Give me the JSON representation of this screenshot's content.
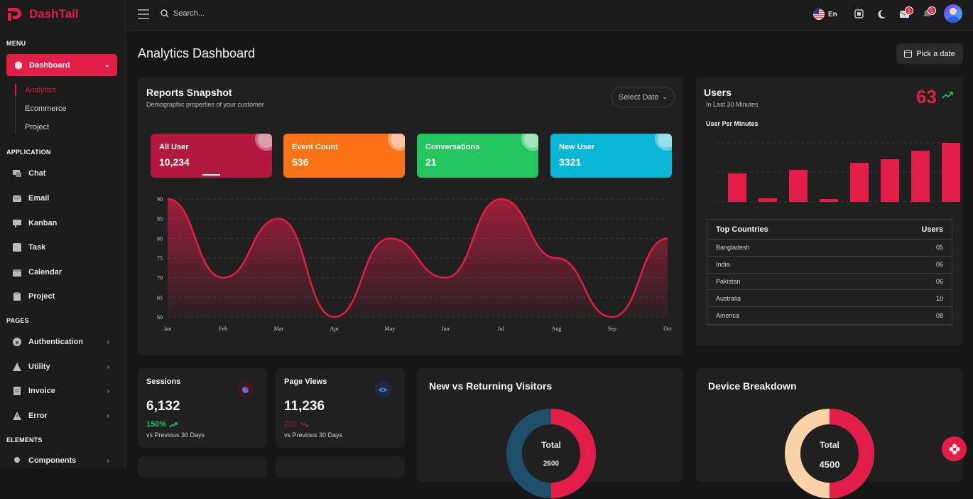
{
  "brand": {
    "name": "DashTail",
    "accent": "#e11d48"
  },
  "sidebar": {
    "menu_label": "MENU",
    "dashboard_label": "Dashboard",
    "dashboard_subitems": [
      "Analytics",
      "Ecommerce",
      "Project"
    ],
    "application_label": "APPLICATION",
    "application_items": [
      "Chat",
      "Email",
      "Kanban",
      "Task",
      "Calendar",
      "Project"
    ],
    "pages_label": "PAGES",
    "pages_items": [
      "Authentication",
      "Utility",
      "Invoice",
      "Error"
    ],
    "elements_label": "ELEMENTS",
    "elements_items": [
      "Components"
    ]
  },
  "topbar": {
    "search_placeholder": "Search...",
    "language": "En",
    "mail_count": "1",
    "notification_count": "5"
  },
  "page": {
    "title": "Analytics Dashboard",
    "pick_date": "Pick a date"
  },
  "reports": {
    "title": "Reports Snapshot",
    "subtitle": "Demographic properties of your customer",
    "select_date": "Select Date",
    "stats": [
      {
        "label": "All User",
        "value": "10,234",
        "color": "#b3193f"
      },
      {
        "label": "Event Count",
        "value": "536",
        "color": "#f97316"
      },
      {
        "label": "Conversations",
        "value": "21",
        "color": "#22c55e"
      },
      {
        "label": "New User",
        "value": "3321",
        "color": "#06b6d4"
      }
    ]
  },
  "chart_data": {
    "type": "area",
    "categories": [
      "Jan",
      "Feb",
      "Mar",
      "Apr",
      "May",
      "Jun",
      "Jul",
      "Aug",
      "Sep",
      "Oct"
    ],
    "values": [
      90,
      70,
      85,
      60,
      80,
      70,
      90,
      75,
      60,
      80
    ],
    "yticks": [
      90,
      85,
      80,
      75,
      70,
      65,
      60
    ],
    "ylim": [
      60,
      90
    ],
    "color": "#e11d48",
    "grid": true
  },
  "users": {
    "title": "Users",
    "subtitle": "In Last 30 Minutes",
    "count": "63",
    "per_minute_label": "User Per Minutes",
    "bars": [
      40,
      5,
      45,
      4,
      55,
      60,
      72,
      83
    ],
    "table_header": {
      "country": "Top Countries",
      "users": "Users"
    },
    "countries": [
      {
        "name": "Bangladesh",
        "users": "05"
      },
      {
        "name": "India",
        "users": "06"
      },
      {
        "name": "Pakistan",
        "users": "06"
      },
      {
        "name": "Australia",
        "users": "10"
      },
      {
        "name": "America",
        "users": "08"
      }
    ]
  },
  "sessions": {
    "title": "Sessions",
    "value": "6,132",
    "change": "150%",
    "vs": "vs Previous 30 Days",
    "color": "#22c55e"
  },
  "pageviews": {
    "title": "Page Views",
    "value": "11,236",
    "change": "202",
    "vs": "vs Previous 30 Days",
    "color": "#e11d48"
  },
  "visitors": {
    "title": "New vs Returning Visitors",
    "total_label": "Total",
    "total": "2600",
    "shares": [
      0.5,
      0.5
    ]
  },
  "devices": {
    "title": "Device Breakdown",
    "total_label": "Total",
    "total": "4500",
    "shares": [
      0.5,
      0.5
    ]
  }
}
